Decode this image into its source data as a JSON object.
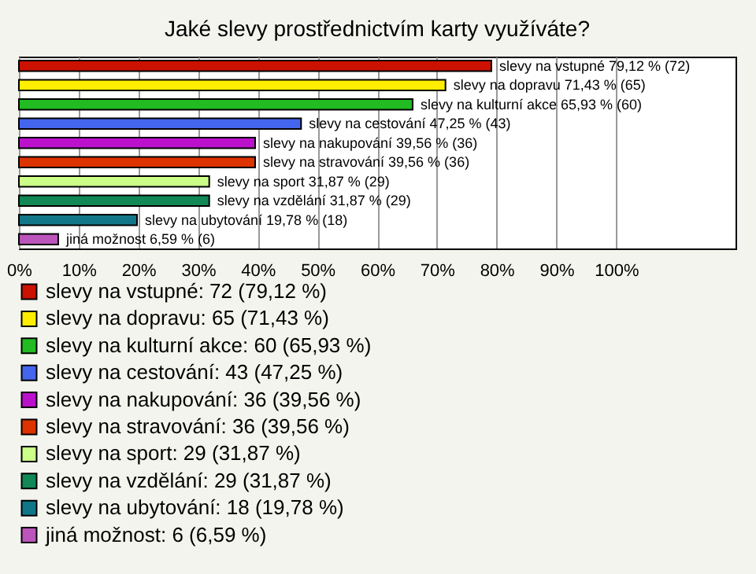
{
  "chart_data": {
    "type": "bar",
    "orientation": "horizontal",
    "title": "Jaké slevy prostřednictvím karty využíváte?",
    "categories": [
      null,
      null,
      null,
      null,
      null,
      null,
      null,
      null,
      null,
      null
    ],
    "series": [
      {
        "name": "slevy na vstupné: 72 (79,12 %)",
        "color": "#cc1100",
        "values": [
          79.12,
          null,
          null,
          null,
          null,
          null,
          null,
          null,
          null,
          null
        ],
        "value_labels": [
          "slevy na vstupné 79,12 % (72)",
          null,
          null,
          null,
          null,
          null,
          null,
          null,
          null,
          null
        ]
      },
      {
        "name": "slevy na dopravu: 65 (71,43 %)",
        "color": "#ffee00",
        "values": [
          null,
          71.43,
          null,
          null,
          null,
          null,
          null,
          null,
          null,
          null
        ],
        "value_labels": [
          null,
          "slevy na dopravu 71,43 % (65)",
          null,
          null,
          null,
          null,
          null,
          null,
          null,
          null
        ]
      },
      {
        "name": "slevy na kulturní akce: 60 (65,93 %)",
        "color": "#22bb22",
        "values": [
          null,
          null,
          65.93,
          null,
          null,
          null,
          null,
          null,
          null,
          null
        ],
        "value_labels": [
          null,
          null,
          "slevy na kulturní akce 65,93 % (60)",
          null,
          null,
          null,
          null,
          null,
          null,
          null
        ]
      },
      {
        "name": "slevy na cestování: 43 (47,25 %)",
        "color": "#4466ee",
        "values": [
          null,
          null,
          null,
          47.25,
          null,
          null,
          null,
          null,
          null,
          null
        ],
        "value_labels": [
          null,
          null,
          null,
          "slevy na cestování 47,25 % (43)",
          null,
          null,
          null,
          null,
          null,
          null
        ]
      },
      {
        "name": "slevy na nakupování: 36 (39,56 %)",
        "color": "#bb11cc",
        "values": [
          null,
          null,
          null,
          null,
          39.56,
          null,
          null,
          null,
          null,
          null
        ],
        "value_labels": [
          null,
          null,
          null,
          null,
          "slevy na nakupování 39,56 % (36)",
          null,
          null,
          null,
          null,
          null
        ]
      },
      {
        "name": "slevy na stravování: 36 (39,56 %)",
        "color": "#dd3300",
        "values": [
          null,
          null,
          null,
          null,
          null,
          39.56,
          null,
          null,
          null,
          null
        ],
        "value_labels": [
          null,
          null,
          null,
          null,
          null,
          "slevy na stravování 39,56 % (36)",
          null,
          null,
          null,
          null
        ]
      },
      {
        "name": "slevy na sport: 29 (31,87 %)",
        "color": "#ccff88",
        "values": [
          null,
          null,
          null,
          null,
          null,
          null,
          31.87,
          null,
          null,
          null
        ],
        "value_labels": [
          null,
          null,
          null,
          null,
          null,
          null,
          "slevy na sport 31,87 % (29)",
          null,
          null,
          null
        ]
      },
      {
        "name": "slevy na vzdělání: 29 (31,87 %)",
        "color": "#118855",
        "values": [
          null,
          null,
          null,
          null,
          null,
          null,
          null,
          31.87,
          null,
          null
        ],
        "value_labels": [
          null,
          null,
          null,
          null,
          null,
          null,
          null,
          "slevy na vzdělání 31,87 % (29)",
          null,
          null
        ]
      },
      {
        "name": "slevy na ubytování: 18 (19,78 %)",
        "color": "#117788",
        "values": [
          null,
          null,
          null,
          null,
          null,
          null,
          null,
          null,
          19.78,
          null
        ],
        "value_labels": [
          null,
          null,
          null,
          null,
          null,
          null,
          null,
          null,
          "slevy na ubytování 19,78 % (18)",
          null
        ]
      },
      {
        "name": "jiná možnost: 6 (6,59 %)",
        "color": "#bb55bb",
        "values": [
          null,
          null,
          null,
          null,
          null,
          null,
          null,
          null,
          null,
          6.59
        ],
        "value_labels": [
          null,
          null,
          null,
          null,
          null,
          null,
          null,
          null,
          null,
          "jiná možnost 6,59 % (6)"
        ]
      }
    ],
    "xlim": [
      0,
      120
    ],
    "xticks": [
      {
        "value": 0,
        "label": "0%"
      },
      {
        "value": 10,
        "label": "10%"
      },
      {
        "value": 20,
        "label": "20%"
      },
      {
        "value": 30,
        "label": "30%"
      },
      {
        "value": 40,
        "label": "40%"
      },
      {
        "value": 50,
        "label": "50%"
      },
      {
        "value": 60,
        "label": "60%"
      },
      {
        "value": 70,
        "label": "70%"
      },
      {
        "value": 80,
        "label": "80%"
      },
      {
        "value": 90,
        "label": "90%"
      },
      {
        "value": 100,
        "label": "100%"
      }
    ],
    "grid": "x",
    "legend": "bottom"
  }
}
